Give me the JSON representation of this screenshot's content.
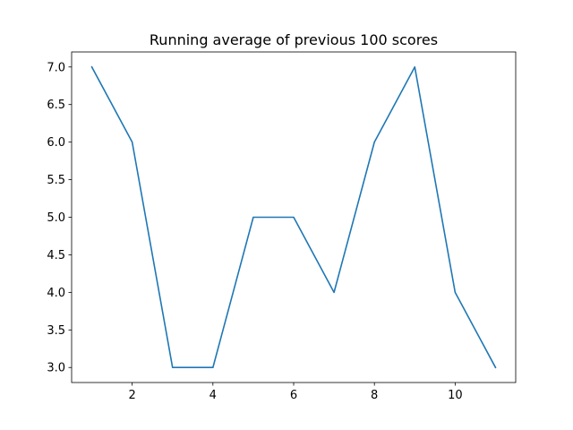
{
  "chart_data": {
    "type": "line",
    "title": "Running average of previous 100 scores",
    "xlabel": "",
    "ylabel": "",
    "x": [
      1,
      2,
      3,
      4,
      5,
      6,
      7,
      8,
      9,
      10,
      11
    ],
    "series": [
      {
        "values": [
          7.0,
          6.0,
          3.0,
          3.0,
          5.0,
          5.0,
          4.0,
          6.0,
          7.0,
          4.0,
          3.0
        ]
      }
    ],
    "xlim": [
      0.5,
      11.5
    ],
    "ylim": [
      2.8,
      7.2
    ],
    "xticks": [
      2,
      4,
      6,
      8,
      10
    ],
    "xtick_labels": [
      "2",
      "4",
      "6",
      "8",
      "10"
    ],
    "yticks": [
      3.0,
      3.5,
      4.0,
      4.5,
      5.0,
      5.5,
      6.0,
      6.5,
      7.0
    ],
    "ytick_labels": [
      "3.0",
      "3.5",
      "4.0",
      "4.5",
      "5.0",
      "5.5",
      "6.0",
      "6.5",
      "7.0"
    ],
    "grid": false,
    "line_color": "#1f77b4"
  }
}
